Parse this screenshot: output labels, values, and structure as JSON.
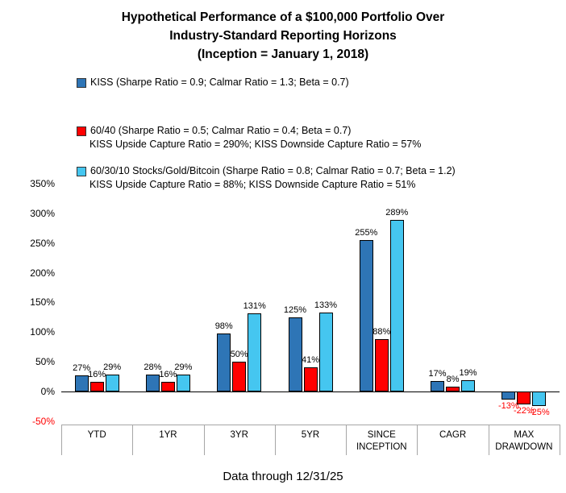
{
  "title": {
    "line1": "Hypothetical Performance of a $100,000 Portfolio Over",
    "line2": "Industry-Standard Reporting Horizons",
    "line3": "(Inception = January 1, 2018)"
  },
  "legend": [
    {
      "label": "KISS (Sharpe Ratio = 0.9; Calmar Ratio = 1.3; Beta = 0.7)",
      "subline": "",
      "color": "#2E75B6"
    },
    {
      "label": "60/40 (Sharpe Ratio = 0.5; Calmar Ratio = 0.4; Beta = 0.7)",
      "subline": "KISS Upside Capture Ratio = 290%; KISS Downside Capture Ratio = 57%",
      "color": "#FF0000"
    },
    {
      "label": "60/30/10 Stocks/Gold/Bitcoin (Sharpe Ratio = 0.8; Calmar Ratio = 0.7; Beta = 1.2)",
      "subline": "KISS Upside Capture Ratio = 88%; KISS Downside Capture Ratio = 51%",
      "color": "#45C6F0"
    }
  ],
  "chart_data": {
    "type": "bar",
    "categories": [
      "YTD",
      "1YR",
      "3YR",
      "5YR",
      "SINCE INCEPTION",
      "CAGR",
      "MAX DRAWDOWN"
    ],
    "series": [
      {
        "name": "KISS",
        "color": "#2E75B6",
        "values": [
          27,
          28,
          98,
          125,
          255,
          17,
          -13
        ]
      },
      {
        "name": "60/40",
        "color": "#FF0000",
        "values": [
          16,
          16,
          50,
          41,
          88,
          8,
          -22
        ]
      },
      {
        "name": "60/30/10 Stocks/Gold/Bitcoin",
        "color": "#45C6F0",
        "values": [
          29,
          29,
          131,
          133,
          289,
          19,
          -25
        ]
      }
    ],
    "title": "Hypothetical Performance of a $100,000 Portfolio Over Industry-Standard Reporting Horizons (Inception = January 1, 2018)",
    "xlabel": "",
    "ylabel": "",
    "ylim": [
      -50,
      350
    ],
    "yticks": [
      350,
      300,
      250,
      200,
      150,
      100,
      50,
      0,
      -50
    ],
    "grid": false,
    "legend_position": "top-left",
    "data_labels": true,
    "negative_label_color": "#FF0000",
    "negative_tick_color": "#FF0000"
  },
  "footer": "Data through 12/31/25"
}
